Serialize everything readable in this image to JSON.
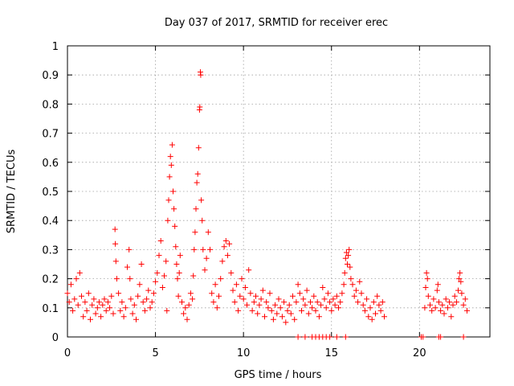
{
  "chart_data": {
    "type": "scatter",
    "title": "Day 037 of 2017, SRMTID for receiver erec",
    "xlabel": "GPS time / hours",
    "ylabel": "SRMTID / TECUs",
    "xlim": [
      0,
      24
    ],
    "ylim": [
      0,
      1
    ],
    "xticks": [
      0,
      5,
      10,
      15,
      20
    ],
    "xtick_labels": [
      "0",
      "5",
      "10",
      "15",
      "20"
    ],
    "yticks": [
      0,
      0.1,
      0.2,
      0.3,
      0.4,
      0.5,
      0.6,
      0.7,
      0.8,
      0.9,
      1
    ],
    "ytick_labels": [
      "0",
      "0.1",
      "0.2",
      "0.3",
      "0.4",
      "0.5",
      "0.6",
      "0.7",
      "0.8",
      "0.9",
      "1"
    ],
    "grid": true,
    "marker": "+",
    "series": [
      {
        "name": "SRMTID",
        "color": "#ff0000",
        "points": [
          [
            0.0,
            0.15
          ],
          [
            0.1,
            0.12
          ],
          [
            0.2,
            0.18
          ],
          [
            0.3,
            0.09
          ],
          [
            0.4,
            0.13
          ],
          [
            0.5,
            0.2
          ],
          [
            0.6,
            0.11
          ],
          [
            0.7,
            0.22
          ],
          [
            0.8,
            0.14
          ],
          [
            0.9,
            0.07
          ],
          [
            1.0,
            0.12
          ],
          [
            1.1,
            0.09
          ],
          [
            1.2,
            0.15
          ],
          [
            1.3,
            0.06
          ],
          [
            1.4,
            0.11
          ],
          [
            1.5,
            0.13
          ],
          [
            1.6,
            0.08
          ],
          [
            1.7,
            0.1
          ],
          [
            1.8,
            0.12
          ],
          [
            1.9,
            0.07
          ],
          [
            2.0,
            0.11
          ],
          [
            2.1,
            0.13
          ],
          [
            2.2,
            0.09
          ],
          [
            2.3,
            0.12
          ],
          [
            2.4,
            0.1
          ],
          [
            2.5,
            0.14
          ],
          [
            2.6,
            0.08
          ],
          [
            2.7,
            0.37
          ],
          [
            2.72,
            0.32
          ],
          [
            2.75,
            0.26
          ],
          [
            2.8,
            0.2
          ],
          [
            2.9,
            0.15
          ],
          [
            3.0,
            0.09
          ],
          [
            3.1,
            0.12
          ],
          [
            3.2,
            0.07
          ],
          [
            3.3,
            0.1
          ],
          [
            3.4,
            0.24
          ],
          [
            3.5,
            0.3
          ],
          [
            3.55,
            0.2
          ],
          [
            3.6,
            0.13
          ],
          [
            3.7,
            0.08
          ],
          [
            3.8,
            0.11
          ],
          [
            3.9,
            0.06
          ],
          [
            4.0,
            0.14
          ],
          [
            4.1,
            0.18
          ],
          [
            4.2,
            0.25
          ],
          [
            4.3,
            0.12
          ],
          [
            4.4,
            0.09
          ],
          [
            4.5,
            0.13
          ],
          [
            4.6,
            0.16
          ],
          [
            4.7,
            0.1
          ],
          [
            4.8,
            0.12
          ],
          [
            4.9,
            0.15
          ],
          [
            5.0,
            0.19
          ],
          [
            5.1,
            0.22
          ],
          [
            5.2,
            0.28
          ],
          [
            5.3,
            0.33
          ],
          [
            5.4,
            0.17
          ],
          [
            5.5,
            0.21
          ],
          [
            5.6,
            0.26
          ],
          [
            5.65,
            0.09
          ],
          [
            5.7,
            0.4
          ],
          [
            5.75,
            0.47
          ],
          [
            5.8,
            0.55
          ],
          [
            5.85,
            0.62
          ],
          [
            5.9,
            0.59
          ],
          [
            5.95,
            0.66
          ],
          [
            6.0,
            0.5
          ],
          [
            6.05,
            0.44
          ],
          [
            6.1,
            0.38
          ],
          [
            6.15,
            0.31
          ],
          [
            6.2,
            0.25
          ],
          [
            6.25,
            0.2
          ],
          [
            6.3,
            0.14
          ],
          [
            6.35,
            0.22
          ],
          [
            6.4,
            0.28
          ],
          [
            6.5,
            0.12
          ],
          [
            6.6,
            0.08
          ],
          [
            6.7,
            0.1
          ],
          [
            6.8,
            0.06
          ],
          [
            6.9,
            0.11
          ],
          [
            7.0,
            0.15
          ],
          [
            7.1,
            0.13
          ],
          [
            7.15,
            0.21
          ],
          [
            7.2,
            0.3
          ],
          [
            7.25,
            0.36
          ],
          [
            7.3,
            0.44
          ],
          [
            7.35,
            0.53
          ],
          [
            7.4,
            0.56
          ],
          [
            7.45,
            0.65
          ],
          [
            7.5,
            0.78
          ],
          [
            7.52,
            0.79
          ],
          [
            7.55,
            0.91
          ],
          [
            7.57,
            0.9
          ],
          [
            7.6,
            0.47
          ],
          [
            7.65,
            0.4
          ],
          [
            7.7,
            0.3
          ],
          [
            7.8,
            0.23
          ],
          [
            7.9,
            0.27
          ],
          [
            8.0,
            0.36
          ],
          [
            8.1,
            0.3
          ],
          [
            8.2,
            0.15
          ],
          [
            8.3,
            0.12
          ],
          [
            8.4,
            0.18
          ],
          [
            8.5,
            0.1
          ],
          [
            8.6,
            0.14
          ],
          [
            8.7,
            0.2
          ],
          [
            8.8,
            0.26
          ],
          [
            8.9,
            0.31
          ],
          [
            9.0,
            0.33
          ],
          [
            9.1,
            0.28
          ],
          [
            9.2,
            0.32
          ],
          [
            9.3,
            0.22
          ],
          [
            9.4,
            0.16
          ],
          [
            9.5,
            0.12
          ],
          [
            9.6,
            0.18
          ],
          [
            9.7,
            0.09
          ],
          [
            9.8,
            0.14
          ],
          [
            9.9,
            0.2
          ],
          [
            10.0,
            0.13
          ],
          [
            10.1,
            0.17
          ],
          [
            10.2,
            0.11
          ],
          [
            10.3,
            0.23
          ],
          [
            10.4,
            0.15
          ],
          [
            10.5,
            0.09
          ],
          [
            10.6,
            0.12
          ],
          [
            10.7,
            0.14
          ],
          [
            10.8,
            0.08
          ],
          [
            10.9,
            0.11
          ],
          [
            11.0,
            0.13
          ],
          [
            11.1,
            0.16
          ],
          [
            11.2,
            0.07
          ],
          [
            11.3,
            0.12
          ],
          [
            11.4,
            0.1
          ],
          [
            11.5,
            0.15
          ],
          [
            11.6,
            0.09
          ],
          [
            11.7,
            0.06
          ],
          [
            11.8,
            0.11
          ],
          [
            11.9,
            0.08
          ],
          [
            12.0,
            0.13
          ],
          [
            12.1,
            0.1
          ],
          [
            12.2,
            0.07
          ],
          [
            12.3,
            0.12
          ],
          [
            12.4,
            0.05
          ],
          [
            12.5,
            0.09
          ],
          [
            12.6,
            0.11
          ],
          [
            12.7,
            0.08
          ],
          [
            12.8,
            0.14
          ],
          [
            12.9,
            0.06
          ],
          [
            13.0,
            0.12
          ],
          [
            13.1,
            0.18
          ],
          [
            13.2,
            0.15
          ],
          [
            13.3,
            0.09
          ],
          [
            13.4,
            0.13
          ],
          [
            13.5,
            0.11
          ],
          [
            13.6,
            0.16
          ],
          [
            13.7,
            0.08
          ],
          [
            13.8,
            0.12
          ],
          [
            13.9,
            0.1
          ],
          [
            14.0,
            0.14
          ],
          [
            14.1,
            0.09
          ],
          [
            14.2,
            0.12
          ],
          [
            14.3,
            0.07
          ],
          [
            14.4,
            0.11
          ],
          [
            14.5,
            0.17
          ],
          [
            14.6,
            0.13
          ],
          [
            14.7,
            0.1
          ],
          [
            14.8,
            0.15
          ],
          [
            14.9,
            0.12
          ],
          [
            15.0,
            0.09
          ],
          [
            15.1,
            0.13
          ],
          [
            15.2,
            0.11
          ],
          [
            15.3,
            0.14
          ],
          [
            15.4,
            0.1
          ],
          [
            15.5,
            0.12
          ],
          [
            15.6,
            0.15
          ],
          [
            15.7,
            0.18
          ],
          [
            15.75,
            0.22
          ],
          [
            15.8,
            0.27
          ],
          [
            15.85,
            0.29
          ],
          [
            15.9,
            0.25
          ],
          [
            15.95,
            0.28
          ],
          [
            16.0,
            0.3
          ],
          [
            16.05,
            0.24
          ],
          [
            16.1,
            0.2
          ],
          [
            16.2,
            0.18
          ],
          [
            16.3,
            0.14
          ],
          [
            16.4,
            0.16
          ],
          [
            16.5,
            0.12
          ],
          [
            16.6,
            0.19
          ],
          [
            16.7,
            0.15
          ],
          [
            16.8,
            0.11
          ],
          [
            16.9,
            0.09
          ],
          [
            17.0,
            0.13
          ],
          [
            17.1,
            0.07
          ],
          [
            17.2,
            0.1
          ],
          [
            17.3,
            0.06
          ],
          [
            17.4,
            0.12
          ],
          [
            17.5,
            0.08
          ],
          [
            17.6,
            0.14
          ],
          [
            17.7,
            0.11
          ],
          [
            17.8,
            0.09
          ],
          [
            17.9,
            0.12
          ],
          [
            18.0,
            0.07
          ],
          [
            13.1,
            0.0
          ],
          [
            13.5,
            0.0
          ],
          [
            13.9,
            0.0
          ],
          [
            14.1,
            0.0
          ],
          [
            14.3,
            0.0
          ],
          [
            14.5,
            0.0
          ],
          [
            14.7,
            0.0
          ],
          [
            14.9,
            0.0
          ],
          [
            15.3,
            0.0
          ],
          [
            15.8,
            0.0
          ],
          [
            20.1,
            0.0
          ],
          [
            20.2,
            0.0
          ],
          [
            21.1,
            0.0
          ],
          [
            21.2,
            0.0
          ],
          [
            22.5,
            0.0
          ],
          [
            20.3,
            0.1
          ],
          [
            20.35,
            0.17
          ],
          [
            20.4,
            0.22
          ],
          [
            20.45,
            0.2
          ],
          [
            20.5,
            0.14
          ],
          [
            20.6,
            0.11
          ],
          [
            20.7,
            0.09
          ],
          [
            20.8,
            0.13
          ],
          [
            20.9,
            0.1
          ],
          [
            21.0,
            0.16
          ],
          [
            21.05,
            0.18
          ],
          [
            21.1,
            0.12
          ],
          [
            21.2,
            0.09
          ],
          [
            21.3,
            0.11
          ],
          [
            21.4,
            0.08
          ],
          [
            21.5,
            0.13
          ],
          [
            21.6,
            0.1
          ],
          [
            21.7,
            0.12
          ],
          [
            21.8,
            0.07
          ],
          [
            21.9,
            0.11
          ],
          [
            22.0,
            0.14
          ],
          [
            22.1,
            0.12
          ],
          [
            22.2,
            0.16
          ],
          [
            22.25,
            0.2
          ],
          [
            22.3,
            0.22
          ],
          [
            22.35,
            0.19
          ],
          [
            22.4,
            0.15
          ],
          [
            22.5,
            0.11
          ],
          [
            22.6,
            0.13
          ],
          [
            22.7,
            0.09
          ]
        ]
      }
    ]
  }
}
